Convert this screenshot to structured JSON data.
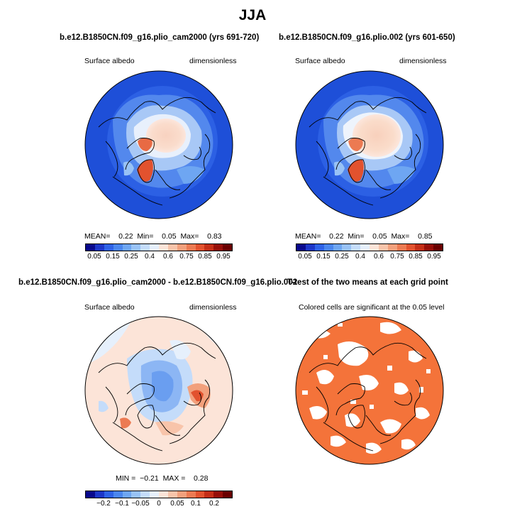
{
  "figure": {
    "title": "JJA",
    "panel_top_left": {
      "title": "b.e12.B1850CN.f09_g16.plio_cam2000 (yrs 691-720)",
      "variable": "Surface albedo",
      "units": "dimensionless",
      "stats": {
        "mean_label": "MEAN=",
        "mean": "0.22",
        "min_label": "Min=",
        "min": "0.05",
        "max_label": "Max=",
        "max": "0.83"
      }
    },
    "panel_top_right": {
      "title": "b.e12.B1850CN.f09_g16.plio.002 (yrs 601-650)",
      "variable": "Surface albedo",
      "units": "dimensionless",
      "stats": {
        "mean_label": "MEAN=",
        "mean": "0.22",
        "min_label": "Min=",
        "min": "0.05",
        "max_label": "Max=",
        "max": "0.85"
      }
    },
    "panel_bottom_left": {
      "title": "b.e12.B1850CN.f09_g16.plio_cam2000 - b.e12.B1850CN.f09_g16.plio.002",
      "variable": "Surface albedo",
      "units": "dimensionless",
      "stats": {
        "min_label": "MIN =",
        "min": "−0.21",
        "max_label": "MAX =",
        "max": "0.28"
      }
    },
    "panel_bottom_right": {
      "title": "T-test of the two means at each grid point",
      "note": "Colored cells are significant at the 0.05 level"
    }
  },
  "chart_data": [
    {
      "type": "heatmap",
      "projection": "north-polar-stereographic",
      "title": "b.e12.B1850CN.f09_g16.plio_cam2000 (yrs 691-720)",
      "variable": "Surface albedo",
      "units": "dimensionless",
      "summary": {
        "mean": 0.22,
        "min": 0.05,
        "max": 0.83
      },
      "colorbar": {
        "levels": [
          0.05,
          0.1,
          0.15,
          0.2,
          0.25,
          0.3,
          0.4,
          0.5,
          0.6,
          0.7,
          0.75,
          0.8,
          0.85,
          0.9,
          0.95
        ],
        "tick_labels": [
          "0.05",
          "0.15",
          "0.25",
          "0.4",
          "0.6",
          "0.75",
          "0.85",
          "0.95"
        ],
        "colors": [
          "#08088c",
          "#1c36c8",
          "#2e62e6",
          "#4a86ee",
          "#6ea6f2",
          "#98c2f6",
          "#c4dcfa",
          "#e6f0fc",
          "#fce4d8",
          "#f8c4aa",
          "#f2a07c",
          "#ec7a52",
          "#e2522e",
          "#c42e16",
          "#960e08",
          "#6a0000"
        ]
      }
    },
    {
      "type": "heatmap",
      "projection": "north-polar-stereographic",
      "title": "b.e12.B1850CN.f09_g16.plio.002 (yrs 601-650)",
      "variable": "Surface albedo",
      "units": "dimensionless",
      "summary": {
        "mean": 0.22,
        "min": 0.05,
        "max": 0.85
      },
      "colorbar": {
        "levels": [
          0.05,
          0.1,
          0.15,
          0.2,
          0.25,
          0.3,
          0.4,
          0.5,
          0.6,
          0.7,
          0.75,
          0.8,
          0.85,
          0.9,
          0.95
        ],
        "tick_labels": [
          "0.05",
          "0.15",
          "0.25",
          "0.4",
          "0.6",
          "0.75",
          "0.85",
          "0.95"
        ],
        "colors": [
          "#08088c",
          "#1c36c8",
          "#2e62e6",
          "#4a86ee",
          "#6ea6f2",
          "#98c2f6",
          "#c4dcfa",
          "#e6f0fc",
          "#fce4d8",
          "#f8c4aa",
          "#f2a07c",
          "#ec7a52",
          "#e2522e",
          "#c42e16",
          "#960e08",
          "#6a0000"
        ]
      }
    },
    {
      "type": "heatmap",
      "projection": "north-polar-stereographic",
      "title": "b.e12.B1850CN.f09_g16.plio_cam2000 - b.e12.B1850CN.f09_g16.plio.002",
      "variable": "Surface albedo",
      "units": "dimensionless",
      "summary": {
        "min": -0.21,
        "max": 0.28
      },
      "colorbar": {
        "levels": [
          -0.25,
          -0.2,
          -0.15,
          -0.1,
          -0.075,
          -0.05,
          -0.025,
          0,
          0.025,
          0.05,
          0.075,
          0.1,
          0.15,
          0.2,
          0.25
        ],
        "tick_labels": [
          "−0.2",
          "−0.1",
          "−0.05",
          "0",
          "0.05",
          "0.1",
          "0.2"
        ],
        "colors": [
          "#08088c",
          "#1c36c8",
          "#2e62e6",
          "#4a86ee",
          "#6ea6f2",
          "#98c2f6",
          "#c4dcfa",
          "#e6f0fc",
          "#fce4d8",
          "#f8c4aa",
          "#f2a07c",
          "#ec7a52",
          "#e2522e",
          "#c42e16",
          "#960e08",
          "#6a0000"
        ]
      }
    },
    {
      "type": "heatmap",
      "projection": "north-polar-stereographic",
      "title": "T-test of the two means at each grid point",
      "note": "Colored cells are significant at the 0.05 level",
      "significance_level": 0.05,
      "colors": {
        "significant": "#f4733a",
        "not_significant": "#ffffff"
      }
    }
  ]
}
